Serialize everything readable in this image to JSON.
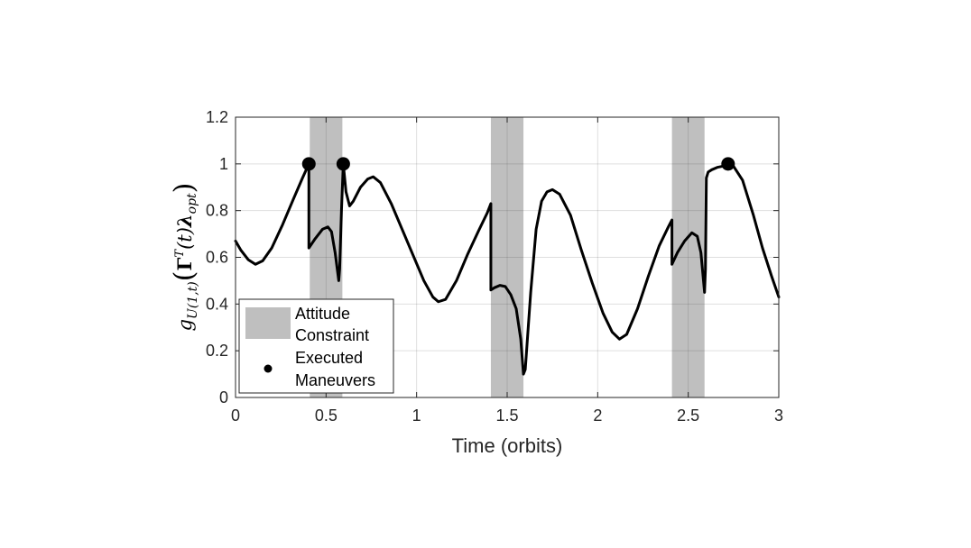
{
  "chart_data": {
    "type": "line",
    "title": "",
    "xlabel": "Time (orbits)",
    "ylabel": {
      "g": "g",
      "sub": "U(1,t)",
      "open": "(",
      "gamma": "Γ",
      "sup": "T",
      "t": "(t)",
      "lambda": "λ",
      "lsub": "opt",
      "close": ")"
    },
    "xlim": [
      0,
      3
    ],
    "ylim": [
      0,
      1.2
    ],
    "xticks": [
      "0",
      "0.5",
      "1",
      "1.5",
      "2",
      "2.5",
      "3"
    ],
    "yticks": [
      "0",
      "0.2",
      "0.4",
      "0.6",
      "0.8",
      "1",
      "1.2"
    ],
    "grid": true,
    "legend_position": "bottom-left",
    "legend": [
      {
        "label_line1": "Attitude",
        "label_line2": "Constraint"
      },
      {
        "label_line1": "Executed",
        "label_line2": "Maneuvers"
      }
    ],
    "shaded_regions": [
      [
        0.41,
        0.59
      ],
      [
        1.41,
        1.59
      ],
      [
        2.41,
        2.59
      ]
    ],
    "shade_color": "#bfbfbf",
    "line_color": "#000000",
    "series": [
      {
        "points": [
          [
            0.0,
            0.67
          ],
          [
            0.03,
            0.63
          ],
          [
            0.07,
            0.59
          ],
          [
            0.11,
            0.57
          ],
          [
            0.15,
            0.585
          ],
          [
            0.2,
            0.64
          ],
          [
            0.26,
            0.74
          ],
          [
            0.32,
            0.85
          ],
          [
            0.37,
            0.94
          ],
          [
            0.405,
            1.0
          ],
          [
            0.405,
            0.64
          ],
          [
            0.44,
            0.68
          ],
          [
            0.48,
            0.72
          ],
          [
            0.51,
            0.73
          ],
          [
            0.53,
            0.71
          ],
          [
            0.55,
            0.62
          ],
          [
            0.57,
            0.5
          ],
          [
            0.575,
            0.55
          ],
          [
            0.585,
            0.8
          ],
          [
            0.595,
            1.0
          ],
          [
            0.61,
            0.88
          ],
          [
            0.63,
            0.82
          ],
          [
            0.65,
            0.84
          ],
          [
            0.69,
            0.9
          ],
          [
            0.73,
            0.935
          ],
          [
            0.76,
            0.945
          ],
          [
            0.8,
            0.92
          ],
          [
            0.86,
            0.83
          ],
          [
            0.92,
            0.72
          ],
          [
            0.98,
            0.61
          ],
          [
            1.04,
            0.5
          ],
          [
            1.09,
            0.43
          ],
          [
            1.12,
            0.41
          ],
          [
            1.16,
            0.42
          ],
          [
            1.22,
            0.5
          ],
          [
            1.28,
            0.61
          ],
          [
            1.34,
            0.71
          ],
          [
            1.39,
            0.79
          ],
          [
            1.41,
            0.83
          ],
          [
            1.41,
            0.46
          ],
          [
            1.43,
            0.47
          ],
          [
            1.46,
            0.48
          ],
          [
            1.49,
            0.475
          ],
          [
            1.52,
            0.44
          ],
          [
            1.55,
            0.38
          ],
          [
            1.575,
            0.25
          ],
          [
            1.59,
            0.1
          ],
          [
            1.6,
            0.12
          ],
          [
            1.63,
            0.45
          ],
          [
            1.66,
            0.72
          ],
          [
            1.69,
            0.84
          ],
          [
            1.72,
            0.88
          ],
          [
            1.75,
            0.89
          ],
          [
            1.79,
            0.87
          ],
          [
            1.85,
            0.78
          ],
          [
            1.91,
            0.63
          ],
          [
            1.97,
            0.49
          ],
          [
            2.03,
            0.36
          ],
          [
            2.08,
            0.28
          ],
          [
            2.12,
            0.25
          ],
          [
            2.16,
            0.27
          ],
          [
            2.22,
            0.38
          ],
          [
            2.28,
            0.52
          ],
          [
            2.34,
            0.65
          ],
          [
            2.39,
            0.73
          ],
          [
            2.41,
            0.76
          ],
          [
            2.41,
            0.57
          ],
          [
            2.44,
            0.62
          ],
          [
            2.48,
            0.67
          ],
          [
            2.52,
            0.705
          ],
          [
            2.55,
            0.69
          ],
          [
            2.57,
            0.62
          ],
          [
            2.59,
            0.45
          ],
          [
            2.595,
            0.55
          ],
          [
            2.6,
            0.94
          ],
          [
            2.61,
            0.965
          ],
          [
            2.63,
            0.975
          ],
          [
            2.66,
            0.985
          ],
          [
            2.69,
            0.99
          ],
          [
            2.72,
            1.0
          ],
          [
            2.75,
            0.99
          ],
          [
            2.8,
            0.93
          ],
          [
            2.86,
            0.78
          ],
          [
            2.91,
            0.64
          ],
          [
            2.96,
            0.52
          ],
          [
            3.0,
            0.43
          ]
        ]
      }
    ],
    "executed_maneuvers": [
      [
        0.405,
        1.0
      ],
      [
        0.595,
        1.0
      ],
      [
        2.72,
        1.0
      ]
    ]
  }
}
